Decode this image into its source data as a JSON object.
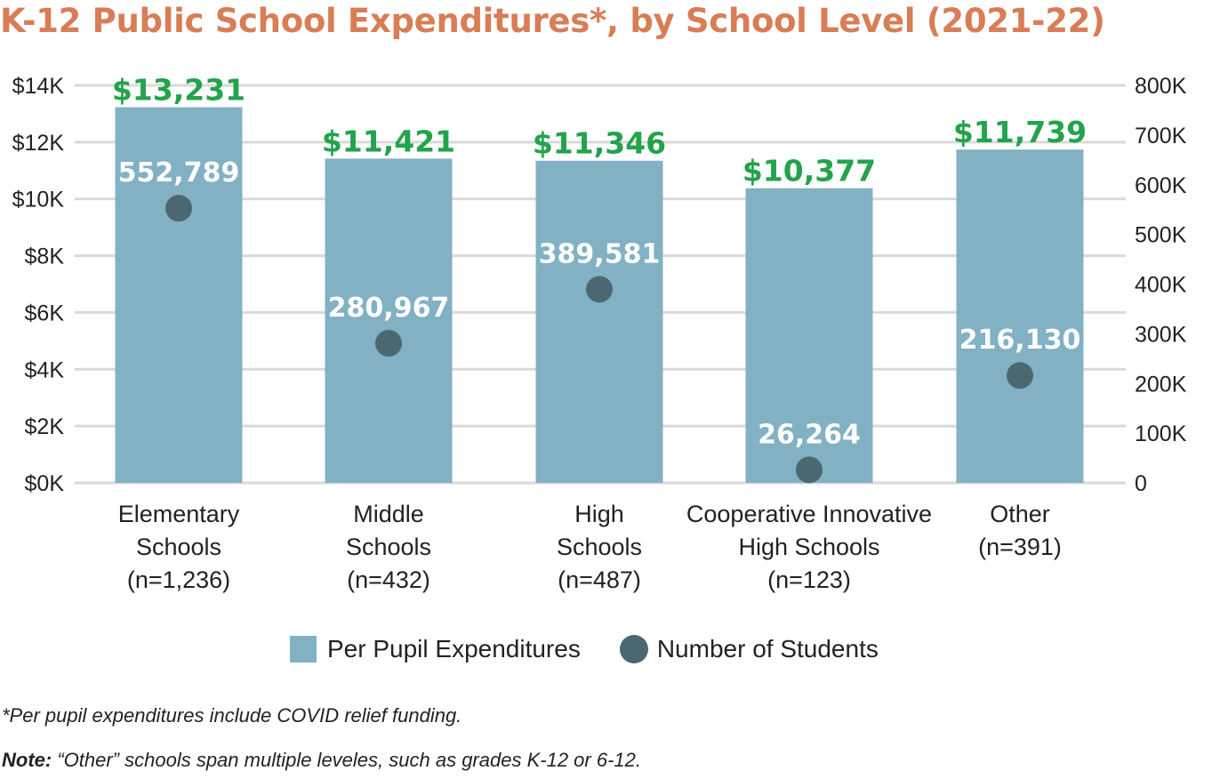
{
  "title": "K-12 Public School Expenditures*, by School Level (2021-22)",
  "chart_data": {
    "type": "bar",
    "categories": [
      [
        "Elementary",
        "Schools",
        "(n=1,236)"
      ],
      [
        "Middle",
        "Schools",
        "(n=432)"
      ],
      [
        "High",
        "Schools",
        "(n=487)"
      ],
      [
        "Cooperative Innovative",
        "High Schools",
        "(n=123)"
      ],
      [
        "Other",
        "(n=391)"
      ]
    ],
    "series": [
      {
        "name": "Per Pupil Expenditures",
        "axis": "left",
        "values": [
          13231,
          11421,
          11346,
          10377,
          11739
        ],
        "labels": [
          "$13,231",
          "$11,421",
          "$11,346",
          "$10,377",
          "$11,739"
        ],
        "color": "#82b1c4"
      },
      {
        "name": "Number of Students",
        "axis": "right",
        "values": [
          552789,
          280967,
          389581,
          26264,
          216130
        ],
        "labels": [
          "552,789",
          "280,967",
          "389,581",
          "26,264",
          "216,130"
        ],
        "color": "#4b6870"
      }
    ],
    "left_axis": {
      "ylim": [
        0,
        14000
      ],
      "ticks": [
        0,
        2000,
        4000,
        6000,
        8000,
        10000,
        12000,
        14000
      ],
      "tick_labels": [
        "$0K",
        "$2K",
        "$4K",
        "$6K",
        "$8K",
        "$10K",
        "$12K",
        "$14K"
      ]
    },
    "right_axis": {
      "ylim": [
        0,
        800000
      ],
      "ticks": [
        0,
        100000,
        200000,
        300000,
        400000,
        500000,
        600000,
        700000,
        800000
      ],
      "tick_labels": [
        "0",
        "100K",
        "200K",
        "300K",
        "400K",
        "500K",
        "600K",
        "700K",
        "800K"
      ]
    },
    "grid": true,
    "legend_position": "bottom"
  },
  "legend": {
    "bar_label": "Per Pupil Expenditures",
    "dot_label": "Number of Students"
  },
  "footnote": "*Per pupil expenditures include COVID relief funding.",
  "note": {
    "label": "Note:",
    "text": " “Other” schools span multiple leveles, such as grades K-12 or 6-12."
  },
  "colors": {
    "title": "#d87d55",
    "value_label": "#22a34c",
    "bar": "#82b1c4",
    "dot": "#4b6870"
  }
}
